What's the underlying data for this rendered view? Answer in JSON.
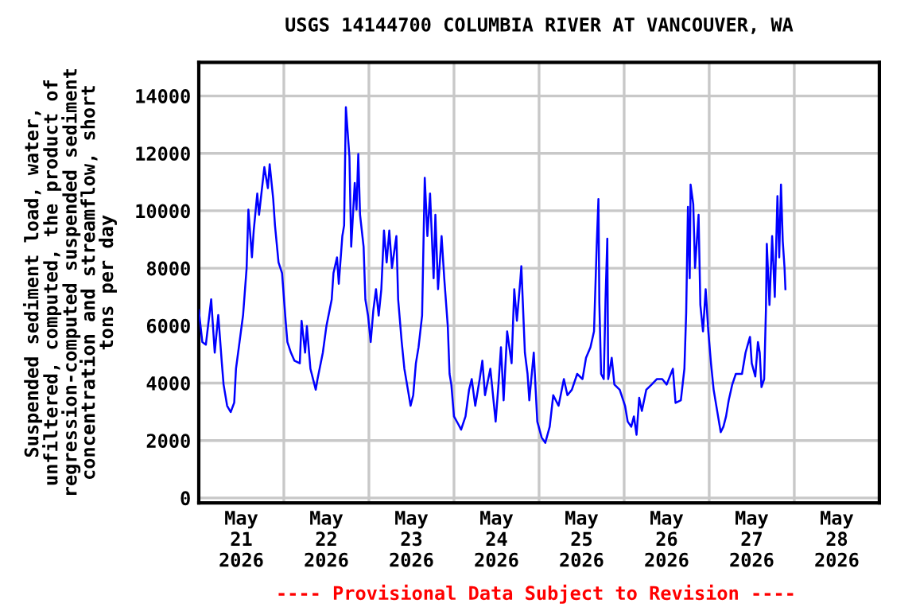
{
  "chart_data": {
    "type": "line",
    "title": "USGS 14144700 COLUMBIA RIVER AT VANCOUVER, WA",
    "ylabel": "Suspended sediment load, water,\nunfiltered, computed, the product of\nregression-computed suspended sediment\nconcentration and streamflow, short\ntons per day",
    "annotations": [
      "---- Provisional Data Subject to Revision ----"
    ],
    "xlim": [
      "2026-05-21T00:00",
      "2026-05-29T00:00"
    ],
    "xticks": [
      {
        "value": "2026-05-21T12:00",
        "label": "May\n21\n2026"
      },
      {
        "value": "2026-05-22T12:00",
        "label": "May\n22\n2026"
      },
      {
        "value": "2026-05-23T12:00",
        "label": "May\n23\n2026"
      },
      {
        "value": "2026-05-24T12:00",
        "label": "May\n24\n2026"
      },
      {
        "value": "2026-05-25T12:00",
        "label": "May\n25\n2026"
      },
      {
        "value": "2026-05-26T12:00",
        "label": "May\n26\n2026"
      },
      {
        "value": "2026-05-27T12:00",
        "label": "May\n27\n2026"
      },
      {
        "value": "2026-05-28T12:00",
        "label": "May\n28\n2026"
      },
      {
        "value": "2026-05-22T00:00",
        "label": null
      },
      {
        "value": "2026-05-23T00:00",
        "label": null
      },
      {
        "value": "2026-05-24T00:00",
        "label": null
      },
      {
        "value": "2026-05-25T00:00",
        "label": null
      },
      {
        "value": "2026-05-26T00:00",
        "label": null
      },
      {
        "value": "2026-05-27T00:00",
        "label": null
      },
      {
        "value": "2026-05-28T00:00",
        "label": null
      }
    ],
    "ylim": [
      -170,
      15170
    ],
    "yticks": [
      0,
      2000,
      4000,
      6000,
      8000,
      10000,
      12000,
      14000
    ],
    "grid": true,
    "line_style": "solid",
    "marker": "none",
    "series": [
      {
        "color": "#0000ff",
        "x": [
          "2026-05-21T00:00",
          "2026-05-21T01:00",
          "2026-05-21T02:00",
          "2026-05-21T03:30",
          "2026-05-21T04:30",
          "2026-05-21T05:30",
          "2026-05-21T06:30",
          "2026-05-21T07:00",
          "2026-05-21T08:00",
          "2026-05-21T09:00",
          "2026-05-21T10:00",
          "2026-05-21T10:30",
          "2026-05-21T11:30",
          "2026-05-21T12:30",
          "2026-05-21T13:30",
          "2026-05-21T14:00",
          "2026-05-21T15:00",
          "2026-05-21T15:30",
          "2026-05-21T16:30",
          "2026-05-21T17:00",
          "2026-05-21T18:30",
          "2026-05-21T19:30",
          "2026-05-21T20:00",
          "2026-05-21T21:00",
          "2026-05-21T21:30",
          "2026-05-21T22:30",
          "2026-05-21T23:30",
          "2026-05-22T00:30",
          "2026-05-22T01:00",
          "2026-05-22T02:00",
          "2026-05-22T03:00",
          "2026-05-22T04:30",
          "2026-05-22T05:00",
          "2026-05-22T06:00",
          "2026-05-22T06:30",
          "2026-05-22T07:30",
          "2026-05-22T09:00",
          "2026-05-22T09:30",
          "2026-05-22T11:00",
          "2026-05-22T12:00",
          "2026-05-22T13:30",
          "2026-05-22T14:00",
          "2026-05-22T15:00",
          "2026-05-22T15:30",
          "2026-05-22T16:30",
          "2026-05-22T17:00",
          "2026-05-22T17:30",
          "2026-05-22T18:30",
          "2026-05-22T19:00",
          "2026-05-22T20:00",
          "2026-05-22T20:30",
          "2026-05-22T21:00",
          "2026-05-22T21:30",
          "2026-05-22T22:30",
          "2026-05-22T23:00",
          "2026-05-22T23:45",
          "2026-05-23T00:30",
          "2026-05-23T01:15",
          "2026-05-23T02:00",
          "2026-05-23T02:45",
          "2026-05-23T03:30",
          "2026-05-23T04:15",
          "2026-05-23T05:00",
          "2026-05-23T05:45",
          "2026-05-23T06:30",
          "2026-05-23T07:45",
          "2026-05-23T08:15",
          "2026-05-23T09:15",
          "2026-05-23T10:00",
          "2026-05-23T11:00",
          "2026-05-23T11:45",
          "2026-05-23T12:30",
          "2026-05-23T13:15",
          "2026-05-23T14:00",
          "2026-05-23T15:00",
          "2026-05-23T15:45",
          "2026-05-23T16:30",
          "2026-05-23T17:15",
          "2026-05-23T18:15",
          "2026-05-23T18:45",
          "2026-05-23T19:30",
          "2026-05-23T20:30",
          "2026-05-23T21:15",
          "2026-05-23T22:15",
          "2026-05-23T22:45",
          "2026-05-23T23:15",
          "2026-05-24T00:00",
          "2026-05-24T01:15",
          "2026-05-24T02:00",
          "2026-05-24T03:15",
          "2026-05-24T04:15",
          "2026-05-24T05:00",
          "2026-05-24T06:00",
          "2026-05-24T07:15",
          "2026-05-24T08:00",
          "2026-05-24T08:45",
          "2026-05-24T10:15",
          "2026-05-24T11:45",
          "2026-05-24T12:30",
          "2026-05-24T13:15",
          "2026-05-24T14:00",
          "2026-05-24T15:00",
          "2026-05-24T16:15",
          "2026-05-24T17:00",
          "2026-05-24T17:45",
          "2026-05-24T18:45",
          "2026-05-24T19:00",
          "2026-05-24T20:00",
          "2026-05-24T20:45",
          "2026-05-24T21:15",
          "2026-05-24T22:30",
          "2026-05-24T23:30",
          "2026-05-25T00:45",
          "2026-05-25T01:45",
          "2026-05-25T03:00",
          "2026-05-25T04:00",
          "2026-05-25T05:30",
          "2026-05-25T07:00",
          "2026-05-25T08:00",
          "2026-05-25T09:15",
          "2026-05-25T10:45",
          "2026-05-25T12:15",
          "2026-05-25T13:15",
          "2026-05-25T14:30",
          "2026-05-25T15:30",
          "2026-05-25T16:15",
          "2026-05-25T16:45",
          "2026-05-25T17:00",
          "2026-05-25T17:30",
          "2026-05-25T18:15",
          "2026-05-25T18:45",
          "2026-05-25T19:15",
          "2026-05-25T19:30",
          "2026-05-25T20:30",
          "2026-05-25T21:15",
          "2026-05-25T22:45",
          "2026-05-26T00:15",
          "2026-05-26T01:00",
          "2026-05-26T02:00",
          "2026-05-26T02:45",
          "2026-05-26T03:30",
          "2026-05-26T04:15",
          "2026-05-26T05:00",
          "2026-05-26T06:15",
          "2026-05-26T07:45",
          "2026-05-26T09:15",
          "2026-05-26T10:45",
          "2026-05-26T12:00",
          "2026-05-26T13:45",
          "2026-05-26T14:30",
          "2026-05-26T16:00",
          "2026-05-26T17:00",
          "2026-05-26T17:30",
          "2026-05-26T18:00",
          "2026-05-26T18:30",
          "2026-05-26T18:45",
          "2026-05-26T19:30",
          "2026-05-26T20:00",
          "2026-05-26T21:00",
          "2026-05-26T21:30",
          "2026-05-26T22:15",
          "2026-05-26T23:00",
          "2026-05-26T23:45",
          "2026-05-27T00:30",
          "2026-05-27T01:15",
          "2026-05-27T02:30",
          "2026-05-27T03:15",
          "2026-05-27T04:00",
          "2026-05-27T04:45",
          "2026-05-27T05:30",
          "2026-05-27T06:30",
          "2026-05-27T07:30",
          "2026-05-27T09:15",
          "2026-05-27T10:15",
          "2026-05-27T11:30",
          "2026-05-27T12:00",
          "2026-05-27T13:00",
          "2026-05-27T13:45",
          "2026-05-27T14:15",
          "2026-05-27T14:45",
          "2026-05-27T15:30",
          "2026-05-27T16:00",
          "2026-05-27T16:15",
          "2026-05-27T17:00",
          "2026-05-27T17:45",
          "2026-05-27T18:30",
          "2026-05-27T19:15",
          "2026-05-27T19:45",
          "2026-05-27T20:15",
          "2026-05-27T20:45",
          "2026-05-27T21:15",
          "2026-05-27T21:30"
        ],
        "values": [
          6540,
          5430,
          5340,
          6920,
          5060,
          6370,
          4710,
          3950,
          3210,
          2990,
          3320,
          4500,
          5430,
          6370,
          8010,
          10040,
          8380,
          9310,
          10600,
          9860,
          11520,
          10790,
          11620,
          10410,
          9490,
          8200,
          7830,
          6170,
          5430,
          5060,
          4780,
          4690,
          6170,
          5060,
          5980,
          4500,
          3770,
          4140,
          5060,
          5980,
          6910,
          7830,
          8380,
          7460,
          9120,
          9490,
          13610,
          11890,
          8750,
          10970,
          10040,
          11980,
          9860,
          8750,
          6910,
          6350,
          5430,
          6540,
          7270,
          6350,
          7270,
          9310,
          8200,
          9310,
          8010,
          9120,
          6910,
          5430,
          4500,
          3770,
          3210,
          3580,
          4690,
          5250,
          6350,
          11150,
          9120,
          10600,
          7650,
          9860,
          7270,
          9120,
          7650,
          5980,
          4320,
          3950,
          2840,
          2560,
          2380,
          2840,
          3770,
          4140,
          3210,
          4140,
          4780,
          3580,
          4500,
          2660,
          3860,
          5250,
          3400,
          5800,
          4690,
          7270,
          6170,
          7650,
          8070,
          5060,
          4320,
          3400,
          5060,
          2660,
          2100,
          1920,
          2480,
          3580,
          3210,
          4140,
          3580,
          3770,
          4320,
          4140,
          4880,
          5250,
          5800,
          8750,
          10410,
          6810,
          4320,
          4140,
          6910,
          9030,
          4140,
          4880,
          3950,
          3770,
          3210,
          2660,
          2480,
          2840,
          2200,
          3490,
          3030,
          3770,
          3950,
          4140,
          4140,
          3950,
          4500,
          3310,
          3400,
          4500,
          6440,
          10140,
          7650,
          10910,
          10230,
          8010,
          9860,
          6720,
          5800,
          7270,
          5800,
          4690,
          3770,
          2840,
          2290,
          2480,
          2840,
          3400,
          3950,
          4320,
          4320,
          5060,
          5610,
          4690,
          4230,
          5430,
          5060,
          3860,
          4140,
          6540,
          8850,
          6720,
          9120,
          7000,
          10510,
          8380,
          10910,
          8940,
          8010,
          7270
        ]
      }
    ]
  }
}
